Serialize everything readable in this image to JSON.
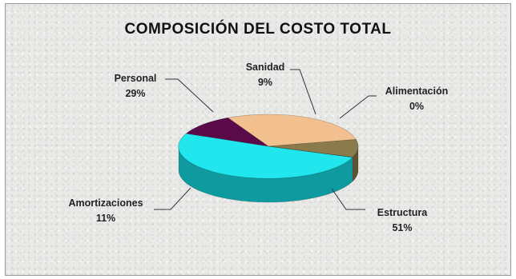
{
  "chart_data": {
    "type": "pie",
    "title": "COMPOSICIÓN DEL COSTO TOTAL",
    "slices": [
      {
        "name": "Estructura",
        "value": 51,
        "label": "51%",
        "color": "#22e6ee",
        "side": "#0f9aa0"
      },
      {
        "name": "Amortizaciones",
        "value": 11,
        "label": "11%",
        "color": "#5a0a49",
        "side": "#3a062e"
      },
      {
        "name": "Personal",
        "value": 29,
        "label": "29%",
        "color": "#f2bf8f",
        "side": "#c49466"
      },
      {
        "name": "Sanidad",
        "value": 9,
        "label": "9%",
        "color": "#8a7a4c",
        "side": "#5e5232"
      },
      {
        "name": "Alimentación",
        "value": 0,
        "label": "0%",
        "color": "#cfcfcf",
        "side": "#9a9a9a"
      }
    ],
    "legend": "none",
    "view": "3d"
  }
}
